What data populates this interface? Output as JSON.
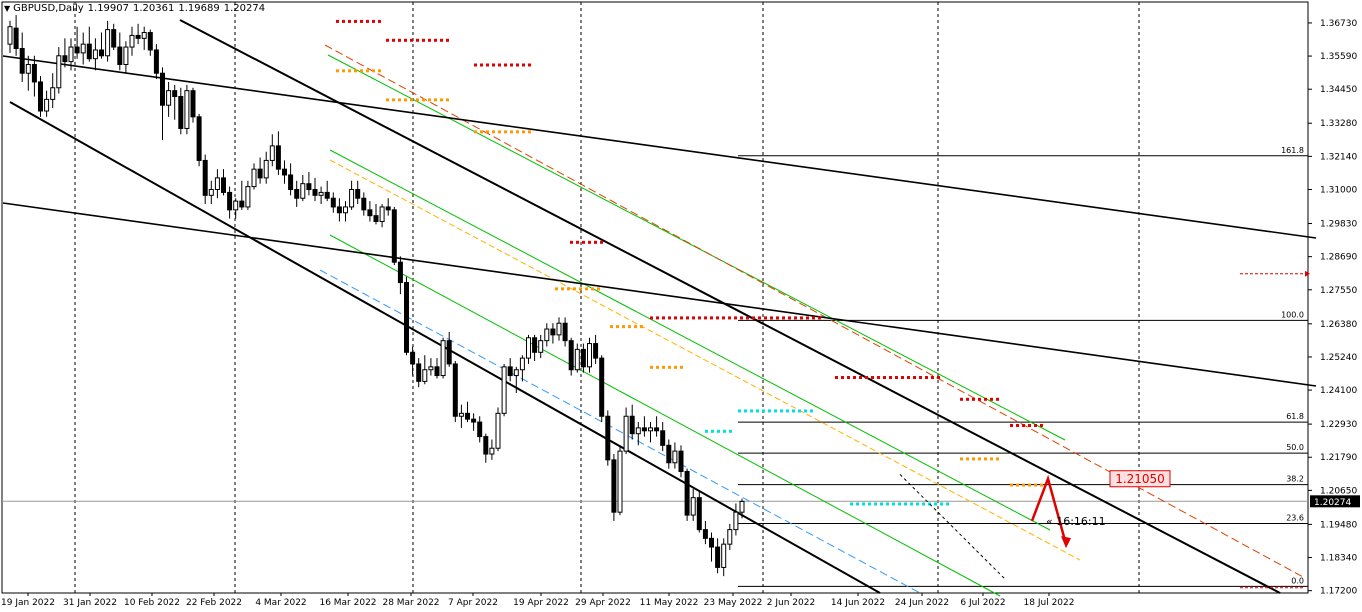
{
  "header": {
    "symbol": "GBPUSD,Daily",
    "open": "1.19907",
    "high": "1.20361",
    "low": "1.19689",
    "close": "1.20274"
  },
  "colors": {
    "background": "#ffffff",
    "candle_up_fill": "#ffffff",
    "candle_down_fill": "#000000",
    "grid": "#000000",
    "trend_lines": "#000000",
    "channel_green": "#00c000",
    "channel_orange": "#ffb400",
    "channel_red": "#e04000",
    "channel_cyan": "#3399ff",
    "dots_red": "#e00000",
    "dots_orange": "#ff9900",
    "dots_cyan": "#00e0e0",
    "arrow": "#e00000",
    "price_label_bg": "#ffe0e0"
  },
  "chart_data": {
    "type": "candlestick",
    "symbol": "GBPUSD",
    "timeframe": "Daily",
    "y_axis": {
      "range": [
        1.1712,
        1.3745
      ],
      "tick_labels": [
        "1.36730",
        "1.35590",
        "1.34450",
        "1.33280",
        "1.32140",
        "1.31000",
        "1.29830",
        "1.28690",
        "1.27550",
        "1.26380",
        "1.25240",
        "1.24100",
        "1.22930",
        "1.21790",
        "1.20650",
        "1.19480",
        "1.18340",
        "1.17200"
      ],
      "current_price": "1.20274"
    },
    "x_axis": {
      "tick_labels": [
        "19 Jan 2022",
        "31 Jan 2022",
        "10 Feb 2022",
        "22 Feb 2022",
        "4 Mar 2022",
        "16 Mar 2022",
        "28 Mar 2022",
        "7 Apr 2022",
        "19 Apr 2022",
        "29 Apr 2022",
        "11 May 2022",
        "23 May 2022",
        "2 Jun 2022",
        "14 Jun 2022",
        "24 Jun 2022",
        "6 Jul 2022",
        "18 Jul 2022"
      ]
    },
    "fibonacci": {
      "levels": [
        {
          "label": "161.8",
          "price": 1.3216
        },
        {
          "label": "100.0",
          "price": 1.265
        },
        {
          "label": "61.8",
          "price": 1.23
        },
        {
          "label": "50.0",
          "price": 1.2193
        },
        {
          "label": "38.2",
          "price": 1.2085
        },
        {
          "label": "23.6",
          "price": 1.1951
        },
        {
          "label": "0.0",
          "price": 1.1735
        }
      ]
    },
    "annotations": {
      "target_label": "1.21050",
      "countdown": "16:16:11",
      "countdown_prefix": "«"
    },
    "candles": [
      [
        1.36,
        1.368,
        1.357,
        1.366
      ],
      [
        1.3655,
        1.37,
        1.356,
        1.3585
      ],
      [
        1.3585,
        1.364,
        1.347,
        1.35
      ],
      [
        1.35,
        1.356,
        1.344,
        1.353
      ],
      [
        1.353,
        1.356,
        1.342,
        1.347
      ],
      [
        1.347,
        1.349,
        1.335,
        1.337
      ],
      [
        1.337,
        1.344,
        1.335,
        1.341
      ],
      [
        1.341,
        1.35,
        1.338,
        1.345
      ],
      [
        1.345,
        1.359,
        1.343,
        1.356
      ],
      [
        1.356,
        1.362,
        1.352,
        1.354
      ],
      [
        1.354,
        1.362,
        1.351,
        1.359
      ],
      [
        1.359,
        1.366,
        1.355,
        1.357
      ],
      [
        1.357,
        1.364,
        1.353,
        1.36
      ],
      [
        1.36,
        1.366,
        1.354,
        1.355
      ],
      [
        1.355,
        1.362,
        1.351,
        1.358
      ],
      [
        1.358,
        1.364,
        1.355,
        1.356
      ],
      [
        1.356,
        1.368,
        1.354,
        1.365
      ],
      [
        1.365,
        1.367,
        1.358,
        1.359
      ],
      [
        1.359,
        1.364,
        1.351,
        1.353
      ],
      [
        1.353,
        1.361,
        1.35,
        1.359
      ],
      [
        1.359,
        1.366,
        1.356,
        1.363
      ],
      [
        1.363,
        1.367,
        1.36,
        1.362
      ],
      [
        1.362,
        1.366,
        1.358,
        1.364
      ],
      [
        1.364,
        1.365,
        1.356,
        1.358
      ],
      [
        1.358,
        1.36,
        1.348,
        1.35
      ],
      [
        1.35,
        1.352,
        1.327,
        1.339
      ],
      [
        1.339,
        1.347,
        1.335,
        1.344
      ],
      [
        1.344,
        1.346,
        1.334,
        1.342
      ],
      [
        1.342,
        1.345,
        1.329,
        1.331
      ],
      [
        1.331,
        1.346,
        1.329,
        1.344
      ],
      [
        1.344,
        1.345,
        1.333,
        1.335
      ],
      [
        1.335,
        1.336,
        1.318,
        1.32
      ],
      [
        1.32,
        1.322,
        1.305,
        1.308
      ],
      [
        1.308,
        1.313,
        1.305,
        1.31
      ],
      [
        1.31,
        1.317,
        1.307,
        1.314
      ],
      [
        1.314,
        1.317,
        1.308,
        1.309
      ],
      [
        1.309,
        1.311,
        1.3,
        1.303
      ],
      [
        1.303,
        1.307,
        1.3,
        1.306
      ],
      [
        1.306,
        1.313,
        1.303,
        1.304
      ],
      [
        1.304,
        1.313,
        1.303,
        1.311
      ],
      [
        1.311,
        1.319,
        1.31,
        1.317
      ],
      [
        1.317,
        1.321,
        1.312,
        1.314
      ],
      [
        1.314,
        1.323,
        1.312,
        1.32
      ],
      [
        1.32,
        1.329,
        1.318,
        1.325
      ],
      [
        1.325,
        1.33,
        1.315,
        1.317
      ],
      [
        1.317,
        1.32,
        1.312,
        1.315
      ],
      [
        1.315,
        1.319,
        1.308,
        1.31
      ],
      [
        1.31,
        1.313,
        1.304,
        1.307
      ],
      [
        1.307,
        1.315,
        1.306,
        1.312
      ],
      [
        1.312,
        1.316,
        1.308,
        1.31
      ],
      [
        1.31,
        1.314,
        1.306,
        1.308
      ],
      [
        1.308,
        1.311,
        1.305,
        1.309
      ],
      [
        1.309,
        1.313,
        1.306,
        1.307
      ],
      [
        1.307,
        1.309,
        1.302,
        1.304
      ],
      [
        1.304,
        1.307,
        1.299,
        1.302
      ],
      [
        1.302,
        1.306,
        1.299,
        1.304
      ],
      [
        1.304,
        1.313,
        1.303,
        1.31
      ],
      [
        1.31,
        1.313,
        1.305,
        1.307
      ],
      [
        1.307,
        1.309,
        1.301,
        1.303
      ],
      [
        1.303,
        1.306,
        1.299,
        1.301
      ],
      [
        1.301,
        1.305,
        1.298,
        1.299
      ],
      [
        1.299,
        1.305,
        1.297,
        1.304
      ],
      [
        1.304,
        1.307,
        1.301,
        1.303
      ],
      [
        1.303,
        1.304,
        1.284,
        1.285
      ],
      [
        1.285,
        1.287,
        1.274,
        1.278
      ],
      [
        1.278,
        1.28,
        1.253,
        1.254
      ],
      [
        1.254,
        1.256,
        1.246,
        1.25
      ],
      [
        1.25,
        1.252,
        1.242,
        1.244
      ],
      [
        1.244,
        1.253,
        1.243,
        1.248
      ],
      [
        1.248,
        1.252,
        1.246,
        1.249
      ],
      [
        1.249,
        1.252,
        1.245,
        1.246
      ],
      [
        1.246,
        1.259,
        1.245,
        1.258
      ],
      [
        1.258,
        1.261,
        1.249,
        1.25
      ],
      [
        1.25,
        1.251,
        1.23,
        1.232
      ],
      [
        1.232,
        1.236,
        1.228,
        1.233
      ],
      [
        1.233,
        1.237,
        1.23,
        1.231
      ],
      [
        1.231,
        1.233,
        1.227,
        1.23
      ],
      [
        1.23,
        1.232,
        1.223,
        1.225
      ],
      [
        1.225,
        1.226,
        1.216,
        1.219
      ],
      [
        1.219,
        1.224,
        1.217,
        1.221
      ],
      [
        1.221,
        1.235,
        1.22,
        1.233
      ],
      [
        1.233,
        1.25,
        1.232,
        1.249
      ],
      [
        1.249,
        1.252,
        1.244,
        1.246
      ],
      [
        1.246,
        1.249,
        1.24,
        1.248
      ],
      [
        1.248,
        1.253,
        1.244,
        1.252
      ],
      [
        1.252,
        1.26,
        1.25,
        1.259
      ],
      [
        1.259,
        1.26,
        1.251,
        1.254
      ],
      [
        1.254,
        1.26,
        1.252,
        1.258
      ],
      [
        1.258,
        1.264,
        1.256,
        1.262
      ],
      [
        1.262,
        1.264,
        1.257,
        1.26
      ],
      [
        1.26,
        1.266,
        1.258,
        1.264
      ],
      [
        1.264,
        1.266,
        1.256,
        1.258
      ],
      [
        1.258,
        1.259,
        1.246,
        1.248
      ],
      [
        1.248,
        1.257,
        1.247,
        1.255
      ],
      [
        1.255,
        1.257,
        1.247,
        1.249
      ],
      [
        1.249,
        1.259,
        1.247,
        1.257
      ],
      [
        1.257,
        1.26,
        1.25,
        1.252
      ],
      [
        1.252,
        1.253,
        1.23,
        1.232
      ],
      [
        1.232,
        1.234,
        1.215,
        1.217
      ],
      [
        1.217,
        1.219,
        1.196,
        1.199
      ],
      [
        1.199,
        1.222,
        1.198,
        1.22
      ],
      [
        1.22,
        1.235,
        1.219,
        1.232
      ],
      [
        1.232,
        1.236,
        1.224,
        1.226
      ],
      [
        1.226,
        1.23,
        1.222,
        1.228
      ],
      [
        1.228,
        1.232,
        1.225,
        1.227
      ],
      [
        1.227,
        1.23,
        1.223,
        1.228
      ],
      [
        1.228,
        1.232,
        1.225,
        1.227
      ],
      [
        1.227,
        1.23,
        1.22,
        1.222
      ],
      [
        1.222,
        1.224,
        1.214,
        1.216
      ],
      [
        1.216,
        1.223,
        1.214,
        1.22
      ],
      [
        1.22,
        1.222,
        1.211,
        1.213
      ],
      [
        1.213,
        1.214,
        1.196,
        1.198
      ],
      [
        1.198,
        1.207,
        1.196,
        1.204
      ],
      [
        1.204,
        1.206,
        1.192,
        1.193
      ],
      [
        1.193,
        1.196,
        1.188,
        1.19
      ],
      [
        1.19,
        1.192,
        1.182,
        1.187
      ],
      [
        1.187,
        1.19,
        1.178,
        1.18
      ],
      [
        1.18,
        1.19,
        1.177,
        1.188
      ],
      [
        1.188,
        1.195,
        1.186,
        1.193
      ],
      [
        1.193,
        1.202,
        1.191,
        1.199
      ],
      [
        1.199,
        1.2036,
        1.1969,
        1.2027
      ]
    ]
  },
  "axis": {
    "prices": [
      {
        "label": "1.36730",
        "price": 1.3673
      },
      {
        "label": "1.35590",
        "price": 1.3559
      },
      {
        "label": "1.34450",
        "price": 1.3445
      },
      {
        "label": "1.33280",
        "price": 1.3328
      },
      {
        "label": "1.32140",
        "price": 1.3214
      },
      {
        "label": "1.31000",
        "price": 1.31
      },
      {
        "label": "1.29830",
        "price": 1.2983
      },
      {
        "label": "1.28690",
        "price": 1.2869
      },
      {
        "label": "1.27550",
        "price": 1.2755
      },
      {
        "label": "1.26380",
        "price": 1.2638
      },
      {
        "label": "1.25240",
        "price": 1.2524
      },
      {
        "label": "1.24100",
        "price": 1.241
      },
      {
        "label": "1.22930",
        "price": 1.2293
      },
      {
        "label": "1.21790",
        "price": 1.2179
      },
      {
        "label": "1.20650",
        "price": 1.2065
      },
      {
        "label": "1.19480",
        "price": 1.1948
      },
      {
        "label": "1.18340",
        "price": 1.1834
      },
      {
        "label": "1.17200",
        "price": 1.172
      }
    ],
    "dates": [
      "19 Jan 2022",
      "31 Jan 2022",
      "10 Feb 2022",
      "22 Feb 2022",
      "4 Mar 2022",
      "16 Mar 2022",
      "28 Mar 2022",
      "7 Apr 2022",
      "19 Apr 2022",
      "29 Apr 2022",
      "11 May 2022",
      "23 May 2022",
      "2 Jun 2022",
      "14 Jun 2022",
      "24 Jun 2022",
      "6 Jul 2022",
      "18 Jul 2022"
    ]
  }
}
